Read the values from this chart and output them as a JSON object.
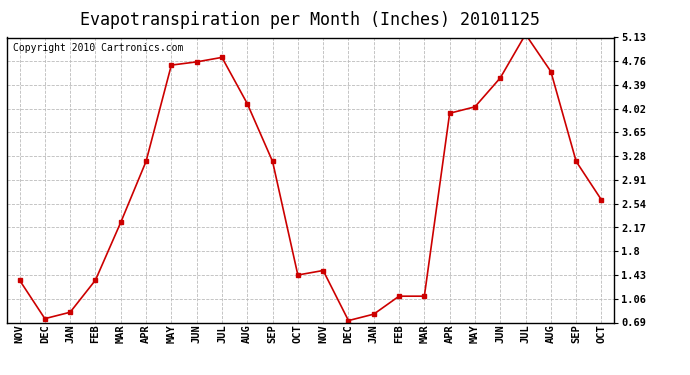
{
  "title": "Evapotranspiration per Month (Inches) 20101125",
  "copyright": "Copyright 2010 Cartronics.com",
  "months": [
    "NOV",
    "DEC",
    "JAN",
    "FEB",
    "MAR",
    "APR",
    "MAY",
    "JUN",
    "JUL",
    "AUG",
    "SEP",
    "OCT",
    "NOV",
    "DEC",
    "JAN",
    "FEB",
    "MAR",
    "APR",
    "MAY",
    "JUN",
    "JUL",
    "AUG",
    "SEP",
    "OCT"
  ],
  "values": [
    1.35,
    0.75,
    0.85,
    1.35,
    2.25,
    3.2,
    4.7,
    4.75,
    4.82,
    4.1,
    3.2,
    1.43,
    1.5,
    0.72,
    0.82,
    1.1,
    1.1,
    3.95,
    4.05,
    4.5,
    5.18,
    4.6,
    3.2,
    2.6
  ],
  "yticks": [
    0.69,
    1.06,
    1.43,
    1.8,
    2.17,
    2.54,
    2.91,
    3.28,
    3.65,
    4.02,
    4.39,
    4.76,
    5.13
  ],
  "ymin": 0.69,
  "ymax": 5.13,
  "line_color": "#cc0000",
  "marker": "s",
  "marker_size": 3,
  "background_color": "white",
  "grid_color": "#bbbbbb",
  "title_fontsize": 12,
  "copyright_fontsize": 7,
  "tick_fontsize": 7.5
}
